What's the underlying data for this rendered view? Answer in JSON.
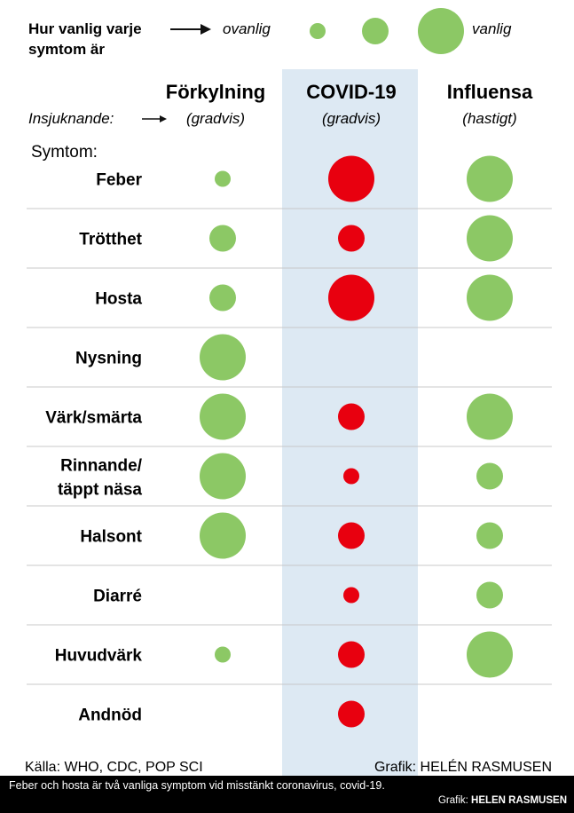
{
  "chart_data": {
    "type": "table",
    "legend": {
      "title_line1": "Hur vanlig varje",
      "title_line2": "symtom är",
      "low_label": "ovanlig",
      "high_label": "vanlig",
      "levels": [
        1,
        2,
        3
      ]
    },
    "onset_label": "Insjuknande:",
    "symptoms_heading": "Symtom:",
    "columns": [
      {
        "name": "Förkylning",
        "onset": "(gradvis)",
        "color": "#8cc865"
      },
      {
        "name": "COVID-19",
        "onset": "(gradvis)",
        "color": "#e8000f"
      },
      {
        "name": "Influensa",
        "onset": "(hastigt)",
        "color": "#8cc865"
      }
    ],
    "rows": [
      {
        "lines": [
          "Feber"
        ],
        "values": [
          1,
          3,
          3
        ]
      },
      {
        "lines": [
          "Trötthet"
        ],
        "values": [
          2,
          2,
          3
        ]
      },
      {
        "lines": [
          "Hosta"
        ],
        "values": [
          2,
          3,
          3
        ]
      },
      {
        "lines": [
          "Nysning"
        ],
        "values": [
          3,
          0,
          0
        ]
      },
      {
        "lines": [
          "Värk/smärta"
        ],
        "values": [
          3,
          2,
          3
        ]
      },
      {
        "lines": [
          "Rinnande/",
          "täppt näsa"
        ],
        "values": [
          3,
          1,
          2
        ]
      },
      {
        "lines": [
          "Halsont"
        ],
        "values": [
          3,
          2,
          2
        ]
      },
      {
        "lines": [
          "Diarré"
        ],
        "values": [
          0,
          1,
          2
        ]
      },
      {
        "lines": [
          "Huvudvärk"
        ],
        "values": [
          1,
          2,
          3
        ]
      },
      {
        "lines": [
          "Andnöd"
        ],
        "values": [
          0,
          2,
          0
        ]
      }
    ],
    "highlight_color": "#dde9f3",
    "source": "Källa: WHO, CDC, POP SCI",
    "credit": "Grafik: HELÉN RASMUSEN"
  },
  "caption": {
    "text": "Feber och hosta är två vanliga symptom vid misstänkt coronavirus, covid-19.",
    "credit_prefix": "Grafik: ",
    "credit_name": "HELEN RASMUSEN"
  }
}
